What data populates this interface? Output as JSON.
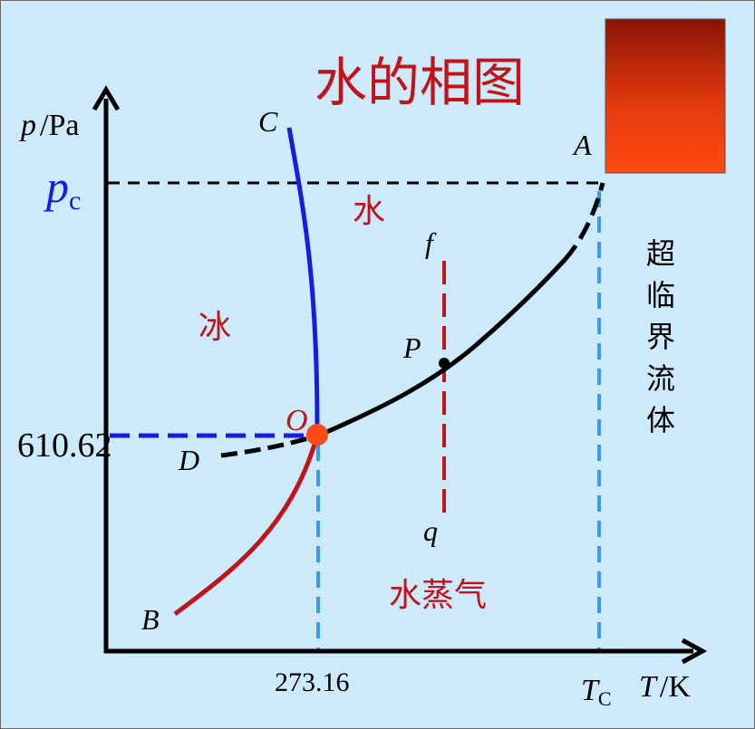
{
  "title": "水的相图",
  "axes": {
    "y_var": "p",
    "y_unit": "Pa",
    "x_var": "T",
    "x_unit": "K"
  },
  "ticks": {
    "pressure_triple": "610.62",
    "pressure_critical_main": "p",
    "pressure_critical_sub": "c",
    "temperature_triple": "273.16",
    "temperature_critical_main": "T",
    "temperature_critical_sub": "C"
  },
  "points": {
    "A": "A",
    "B": "B",
    "C": "C",
    "D": "D",
    "O": "O",
    "P": "P",
    "f": "f",
    "q": "q"
  },
  "regions": {
    "ice": "冰",
    "water": "水",
    "vapor": "水蒸气",
    "supercritical": [
      "超",
      "临",
      "界",
      "流",
      "体"
    ]
  },
  "colors": {
    "sublimation_curve": "#c0141a",
    "melting_curve": "#1a1ae0",
    "vaporization_curve": "#000000",
    "guide_lines": "#3a9af0",
    "triple_point": "#ff4a1a",
    "region_text": "#c0141a",
    "title": "#c0141a",
    "critical_pressure_label": "#1a1ae0"
  }
}
